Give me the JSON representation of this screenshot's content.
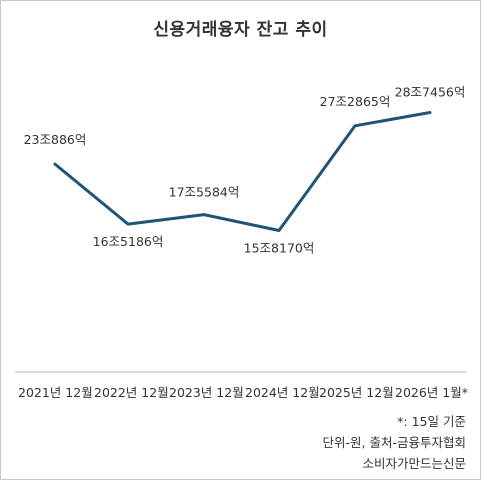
{
  "chart_data": {
    "type": "line",
    "title": "신용거래융자 잔고 추이",
    "categories": [
      "2021년 12월",
      "2022년 12월",
      "2023년 12월",
      "2024년 12월",
      "2025년 12월",
      "2026년 1월*"
    ],
    "series": [
      {
        "values": [
          230886,
          165186,
          175584,
          158170,
          272865,
          287456
        ],
        "labels": [
          "23조886억",
          "16조5186억",
          "17조5584억",
          "15조8170억",
          "27조2865억",
          "28조7456억"
        ]
      }
    ],
    "unit_note": "단위-원",
    "line_color": "#1e5575",
    "grid": false,
    "legend": "none"
  },
  "footer": {
    "note": "*: 15일 기준",
    "source": "단위-원, 출처-금융투자협회",
    "credit": "소비자가만드는신문"
  }
}
